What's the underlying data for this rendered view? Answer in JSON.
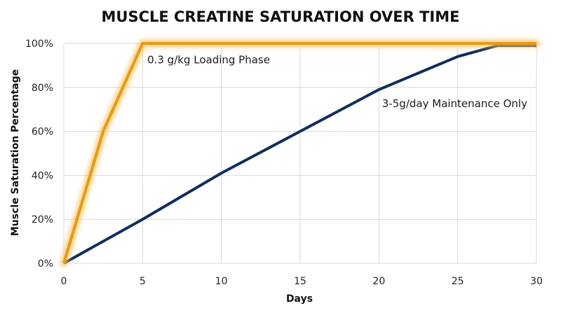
{
  "chart_data": {
    "type": "line",
    "title": "MUSCLE CREATINE SATURATION OVER TIME",
    "xlabel": "Days",
    "ylabel": "Muscle Saturation Percentage",
    "xlim": [
      0,
      30
    ],
    "ylim": [
      0,
      100
    ],
    "x_ticks": [
      0,
      5,
      10,
      15,
      20,
      25,
      30
    ],
    "x_tick_labels": [
      "0",
      "5",
      "10",
      "15",
      "20",
      "25",
      "30"
    ],
    "y_ticks": [
      0,
      20,
      40,
      60,
      80,
      100
    ],
    "y_tick_labels": [
      "0%",
      "20%",
      "40%",
      "60%",
      "80%",
      "100%"
    ],
    "grid": true,
    "legend": "none",
    "series": [
      {
        "name": "0.3 g/kg Loading Phase",
        "color": "#e69a17",
        "glow": true,
        "points": [
          [
            0,
            0
          ],
          [
            2.5,
            60
          ],
          [
            5,
            100
          ],
          [
            30,
            100
          ]
        ]
      },
      {
        "name": "3-5g/day Maintenance Only",
        "color": "#0f2e5c",
        "glow": false,
        "points": [
          [
            0,
            0
          ],
          [
            5,
            20
          ],
          [
            10,
            41
          ],
          [
            15,
            60
          ],
          [
            20,
            79
          ],
          [
            25,
            94
          ],
          [
            27.5,
            99
          ],
          [
            30,
            99
          ]
        ]
      }
    ],
    "annotations": [
      {
        "text": "0.3 g/kg Loading Phase",
        "x": 5.3,
        "y": 91
      },
      {
        "text": "3-5g/day Maintenance Only",
        "x": 20.2,
        "y": 71
      }
    ]
  }
}
